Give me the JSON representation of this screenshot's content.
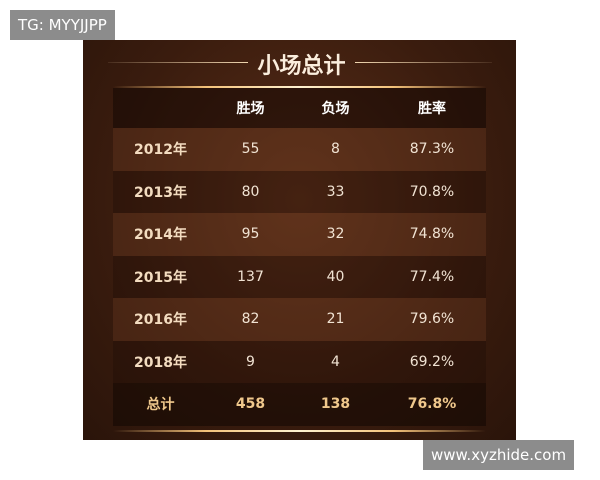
{
  "title": "小场总计",
  "headers": [
    "",
    "胜场",
    "负场",
    "胜率"
  ],
  "rows": [
    [
      "2012年",
      "55",
      "8",
      "87.3%"
    ],
    [
      "2013年",
      "80",
      "33",
      "70.8%"
    ],
    [
      "2014年",
      "95",
      "32",
      "74.8%"
    ],
    [
      "2015年",
      "137",
      "40",
      "77.4%"
    ],
    [
      "2016年",
      "82",
      "21",
      "79.6%"
    ],
    [
      "2018年",
      "9",
      "4",
      "69.2%"
    ]
  ],
  "total": [
    "总计",
    "458",
    "138",
    "76.8%"
  ],
  "watermarks": {
    "top_left": "TG: MYYJJPP",
    "bottom_right": "www.xyzhide.com"
  },
  "colors": {
    "background": "#3a1c0e",
    "total_text": "#f0c88c",
    "accent_glow": "#f4c27a"
  }
}
